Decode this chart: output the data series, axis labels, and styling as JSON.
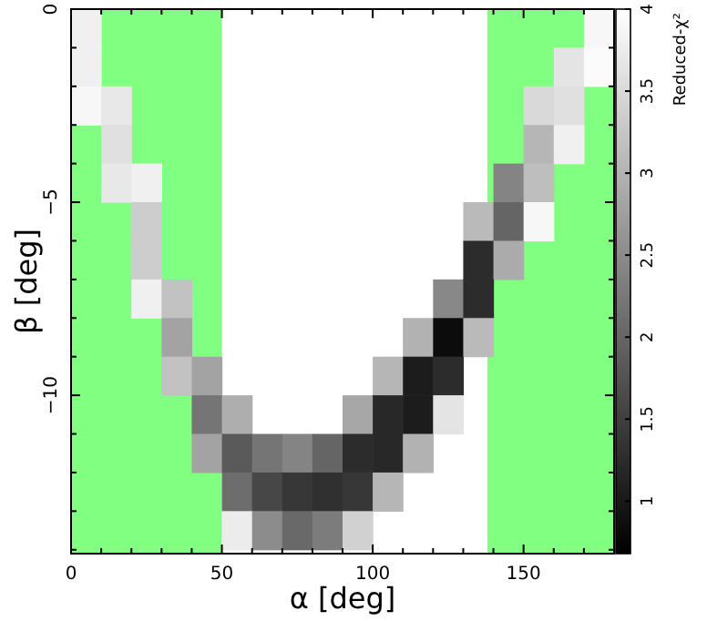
{
  "chart_data": {
    "type": "heatmap",
    "xlabel": "α [deg]",
    "ylabel": "β [deg]",
    "clabel": "Reduced-χ²",
    "x": [
      5,
      15,
      25,
      35,
      45,
      55,
      65,
      75,
      85,
      95,
      105,
      115,
      125,
      135,
      145,
      155,
      165,
      175
    ],
    "y": [
      -0.5,
      -1.5,
      -2.5,
      -3.5,
      -4.5,
      -5.5,
      -6.5,
      -7.5,
      -8.5,
      -9.5,
      -10.5,
      -11.5,
      -12.5,
      -13.5
    ],
    "cells": [
      [
        3.8,
        null,
        null,
        null,
        null,
        null,
        null,
        null,
        null,
        null,
        null,
        null,
        null,
        null,
        null,
        null,
        null,
        3.9
      ],
      [
        3.8,
        null,
        null,
        null,
        null,
        null,
        null,
        null,
        null,
        null,
        null,
        null,
        null,
        null,
        null,
        null,
        3.65,
        3.95
      ],
      [
        3.9,
        3.7,
        null,
        null,
        null,
        null,
        null,
        null,
        null,
        null,
        null,
        null,
        null,
        null,
        null,
        3.5,
        3.6,
        null
      ],
      [
        null,
        3.6,
        null,
        null,
        null,
        null,
        null,
        null,
        null,
        null,
        null,
        null,
        null,
        null,
        null,
        3.05,
        3.8,
        null
      ],
      [
        null,
        3.7,
        3.8,
        null,
        null,
        null,
        null,
        null,
        null,
        null,
        null,
        null,
        null,
        null,
        2.4,
        3.15,
        null,
        null
      ],
      [
        null,
        null,
        3.35,
        null,
        null,
        null,
        null,
        null,
        null,
        null,
        null,
        null,
        null,
        3.1,
        2,
        3.9,
        null,
        null
      ],
      [
        null,
        null,
        3.35,
        null,
        null,
        null,
        null,
        null,
        null,
        null,
        null,
        null,
        null,
        1.25,
        2.9,
        null,
        null,
        null
      ],
      [
        null,
        null,
        3.8,
        3.2,
        null,
        null,
        null,
        null,
        null,
        null,
        null,
        null,
        2.45,
        1.25,
        null,
        null,
        null,
        null
      ],
      [
        null,
        null,
        null,
        2.8,
        null,
        null,
        null,
        null,
        null,
        null,
        null,
        3,
        0.84,
        3.1,
        null,
        null,
        null,
        null
      ],
      [
        null,
        null,
        null,
        3.2,
        2.8,
        null,
        null,
        null,
        null,
        null,
        3.05,
        1.05,
        1.25,
        null,
        null,
        null,
        null,
        null
      ],
      [
        null,
        null,
        null,
        null,
        2.2,
        2.95,
        null,
        null,
        null,
        2.85,
        1.2,
        1.05,
        3.65,
        null,
        null,
        null,
        null,
        null
      ],
      [
        null,
        null,
        null,
        null,
        2.8,
        1.85,
        2.2,
        2.4,
        2,
        1.25,
        1.2,
        3,
        null,
        null,
        null,
        null,
        null,
        null
      ],
      [
        null,
        null,
        null,
        null,
        null,
        2.1,
        1.6,
        1.4,
        1.3,
        1.4,
        3.05,
        null,
        null,
        null,
        null,
        null,
        null,
        null
      ],
      [
        null,
        null,
        null,
        null,
        null,
        3.75,
        2.5,
        2.05,
        2.3,
        3.4,
        null,
        null,
        null,
        null,
        null,
        null,
        null,
        null
      ]
    ],
    "clim": [
      0.68,
      4
    ],
    "cticks": [
      1,
      1.5,
      2,
      2.5,
      3,
      3.5,
      4
    ],
    "xlim": [
      0,
      180
    ],
    "ylim": [
      -14.1,
      0
    ],
    "xticks": [
      0,
      {
        "value": 10,
        "label": null
      },
      {
        "value": 20,
        "label": null
      },
      {
        "value": 30,
        "label": null
      },
      {
        "value": 40,
        "label": null
      },
      50,
      {
        "value": 60,
        "label": null
      },
      {
        "value": 70,
        "label": null
      },
      {
        "value": 80,
        "label": null
      },
      {
        "value": 90,
        "label": null
      },
      100,
      {
        "value": 110,
        "label": null
      },
      {
        "value": 120,
        "label": null
      },
      {
        "value": 130,
        "label": null
      },
      {
        "value": 140,
        "label": null
      },
      150,
      {
        "value": 160,
        "label": null
      },
      {
        "value": 170,
        "label": null
      },
      {
        "value": 180,
        "label": null
      }
    ],
    "yticks": [
      0,
      {
        "value": -1,
        "label": null
      },
      {
        "value": -2,
        "label": null
      },
      {
        "value": -3,
        "label": null
      },
      {
        "value": -4,
        "label": null
      },
      {
        "value": -5,
        "label": "−5"
      },
      {
        "value": -6,
        "label": null
      },
      {
        "value": -7,
        "label": null
      },
      {
        "value": -8,
        "label": null
      },
      {
        "value": -9,
        "label": null
      },
      {
        "value": -10,
        "label": "−10"
      },
      {
        "value": -11,
        "label": null
      },
      {
        "value": -12,
        "label": null
      },
      {
        "value": -13,
        "label": null
      },
      {
        "value": -14,
        "label": null
      }
    ],
    "bands": [
      {
        "axis": "x",
        "from": 0,
        "to": 50,
        "color": "#80ff80"
      },
      {
        "axis": "x",
        "from": 138,
        "to": 180,
        "color": "#80ff80"
      }
    ],
    "grid": false
  }
}
